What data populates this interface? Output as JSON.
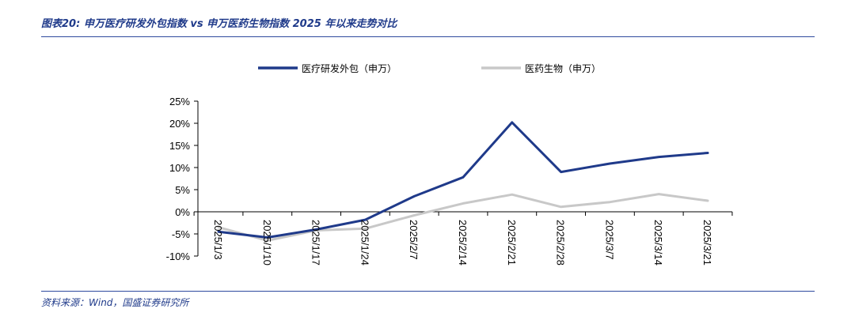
{
  "header": {
    "title": "图表20:  申万医疗研发外包指数 vs 申万医药生物指数 2025 年以来走势对比"
  },
  "footer": {
    "source": "资料来源：Wind，国盛证券研究所"
  },
  "colors": {
    "series1": "#1f3a8a",
    "series2": "#c8c8c8",
    "rule": "#2e4a9e"
  },
  "chart_data": {
    "type": "line",
    "x": [
      "2025/1/3",
      "2025/1/10",
      "2025/1/17",
      "2025/1/24",
      "2025/2/7",
      "2025/2/14",
      "2025/2/21",
      "2025/2/28",
      "2025/3/7",
      "2025/3/14",
      "2025/3/21"
    ],
    "series": [
      {
        "name": "医疗研发外包（申万）",
        "values": [
          -4.5,
          -5.8,
          -4.0,
          -1.8,
          3.5,
          7.8,
          20.2,
          9.0,
          10.9,
          12.4,
          13.3
        ]
      },
      {
        "name": "医药生物（申万）",
        "values": [
          -3.5,
          -6.5,
          -4.2,
          -3.8,
          -0.8,
          1.9,
          3.9,
          1.1,
          2.2,
          4.0,
          2.5
        ]
      }
    ],
    "y_ticks": [
      "25%",
      "20%",
      "15%",
      "10%",
      "5%",
      "0%",
      "-5%",
      "-10%"
    ],
    "ylim": [
      -10,
      25
    ],
    "xlabel": "",
    "ylabel": "",
    "grid": false,
    "legend_position": "top"
  }
}
